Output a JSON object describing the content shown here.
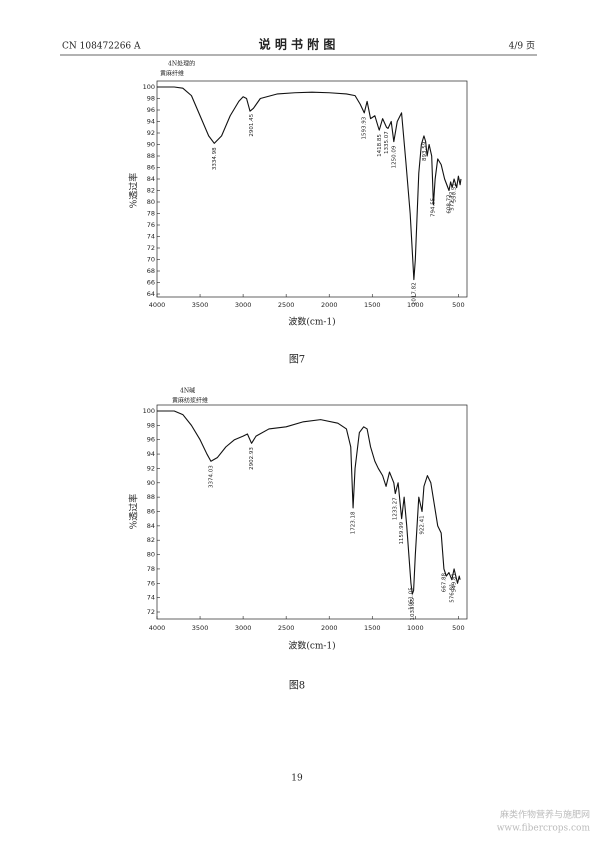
{
  "header": {
    "left": "CN 108472266 A",
    "center": "说 明 书 附 图",
    "right": "4/9 页"
  },
  "page_number": "19",
  "watermark": [
    "麻类作物营养与施肥网",
    "www.fibercrops.com"
  ],
  "chart_data": [
    {
      "type": "line",
      "caption": "图7",
      "x_label": "波数(cm-1)",
      "y_label": "%透过率",
      "label_lines": [
        "4N处理的",
        "黄麻纤维"
      ],
      "xlim": [
        4000,
        400
      ],
      "xticks": [
        4000,
        3500,
        3000,
        2500,
        2000,
        1500,
        1000,
        500
      ],
      "ylim": [
        64,
        100
      ],
      "yticks": [
        64,
        66,
        68,
        70,
        72,
        74,
        76,
        78,
        80,
        82,
        84,
        86,
        88,
        90,
        92,
        94,
        96,
        98,
        100
      ],
      "x": [
        4000,
        3800,
        3700,
        3600,
        3500,
        3400,
        3335,
        3250,
        3150,
        3050,
        3000,
        2960,
        2920,
        2880,
        2800,
        2600,
        2400,
        2200,
        2000,
        1800,
        1700,
        1640,
        1593,
        1560,
        1520,
        1470,
        1430,
        1419,
        1380,
        1335,
        1317,
        1280,
        1250,
        1210,
        1160,
        1110,
        1060,
        1030,
        1017,
        1000,
        960,
        930,
        900,
        880,
        863,
        840,
        810,
        790,
        770,
        740,
        700,
        660,
        609,
        590,
        573,
        550,
        520,
        500,
        480,
        470
      ],
      "series": [
        {
          "color": "#111111",
          "values": [
            100,
            100,
            99.8,
            98.5,
            95,
            91.5,
            90.2,
            91.5,
            95,
            97.5,
            98.3,
            98,
            95.8,
            96.3,
            98,
            98.8,
            99,
            99.1,
            99,
            98.8,
            98.5,
            97,
            95.5,
            97.5,
            94.5,
            95,
            93,
            92.5,
            94.5,
            93,
            92.8,
            94,
            90.5,
            94,
            95.5,
            87,
            78,
            70,
            66.5,
            70,
            85,
            90,
            91.5,
            90.5,
            88,
            90,
            88,
            79.5,
            84,
            87.5,
            86.5,
            84,
            82,
            83.5,
            82.5,
            84,
            82.5,
            84.5,
            83,
            84
          ]
        }
      ],
      "annotations": [
        {
          "label": "3334.98",
          "x": 3334.98
        },
        {
          "label": "2901.45",
          "x": 2901.45
        },
        {
          "label": "1593.93",
          "x": 1593.93
        },
        {
          "label": "1418.85",
          "x": 1418.85
        },
        {
          "label": "1335.07",
          "x": 1335.07
        },
        {
          "label": "1250.09",
          "x": 1250.09
        },
        {
          "label": "1017.82",
          "x": 1017.82
        },
        {
          "label": "893.59",
          "x": 893.59
        },
        {
          "label": "794.55",
          "x": 794.55
        },
        {
          "label": "608.72",
          "x": 608.72
        },
        {
          "label": "572.77",
          "x": 572.77
        },
        {
          "label": "550.51",
          "x": 550.51
        }
      ]
    },
    {
      "type": "line",
      "caption": "图8",
      "x_label": "波数(cm-1)",
      "y_label": "%透过率",
      "label_lines": [
        "4N碱",
        "黄麻纺浆纤维"
      ],
      "xlim": [
        4000,
        400
      ],
      "xticks": [
        4000,
        3500,
        3000,
        2500,
        2000,
        1500,
        1000,
        500
      ],
      "ylim": [
        72,
        100
      ],
      "yticks": [
        72,
        74,
        76,
        78,
        80,
        82,
        84,
        86,
        88,
        90,
        92,
        94,
        96,
        98,
        100
      ],
      "x": [
        4000,
        3800,
        3700,
        3600,
        3500,
        3420,
        3374,
        3300,
        3200,
        3100,
        3000,
        2950,
        2902,
        2850,
        2700,
        2500,
        2300,
        2100,
        1900,
        1800,
        1750,
        1723,
        1700,
        1650,
        1600,
        1560,
        1520,
        1470,
        1430,
        1380,
        1340,
        1300,
        1250,
        1233,
        1200,
        1159,
        1130,
        1100,
        1051,
        1035,
        1020,
        1000,
        960,
        922,
        900,
        860,
        820,
        780,
        740,
        700,
        668,
        640,
        610,
        576,
        550,
        530,
        510,
        490,
        480
      ],
      "series": [
        {
          "color": "#111111",
          "values": [
            100,
            100,
            99.5,
            98,
            96,
            94,
            93,
            93.5,
            95,
            96,
            96.5,
            96.8,
            95.5,
            96.5,
            97.5,
            97.8,
            98.5,
            98.8,
            98.3,
            97.5,
            95,
            86.5,
            92,
            97,
            97.8,
            97.5,
            95,
            93,
            92,
            91,
            89.5,
            91.5,
            90,
            88.5,
            90,
            85,
            88,
            84,
            76,
            74.5,
            75,
            80,
            88,
            86,
            89.5,
            91,
            90,
            87,
            84,
            83,
            78,
            77,
            77.5,
            76.5,
            78,
            77,
            76,
            77,
            76.5
          ]
        }
      ],
      "annotations": [
        {
          "label": "3374.03",
          "x": 3374.03
        },
        {
          "label": "2902.93",
          "x": 2902.93
        },
        {
          "label": "1723.18",
          "x": 1723.18
        },
        {
          "label": "1233.27",
          "x": 1233.27
        },
        {
          "label": "1159.99",
          "x": 1159.99
        },
        {
          "label": "1051.05",
          "x": 1051.05
        },
        {
          "label": "1033.85",
          "x": 1033.85
        },
        {
          "label": "922.41",
          "x": 922.41
        },
        {
          "label": "667.88",
          "x": 667.88
        },
        {
          "label": "576.81",
          "x": 576.81
        },
        {
          "label": "549.81",
          "x": 549.81
        }
      ]
    }
  ]
}
